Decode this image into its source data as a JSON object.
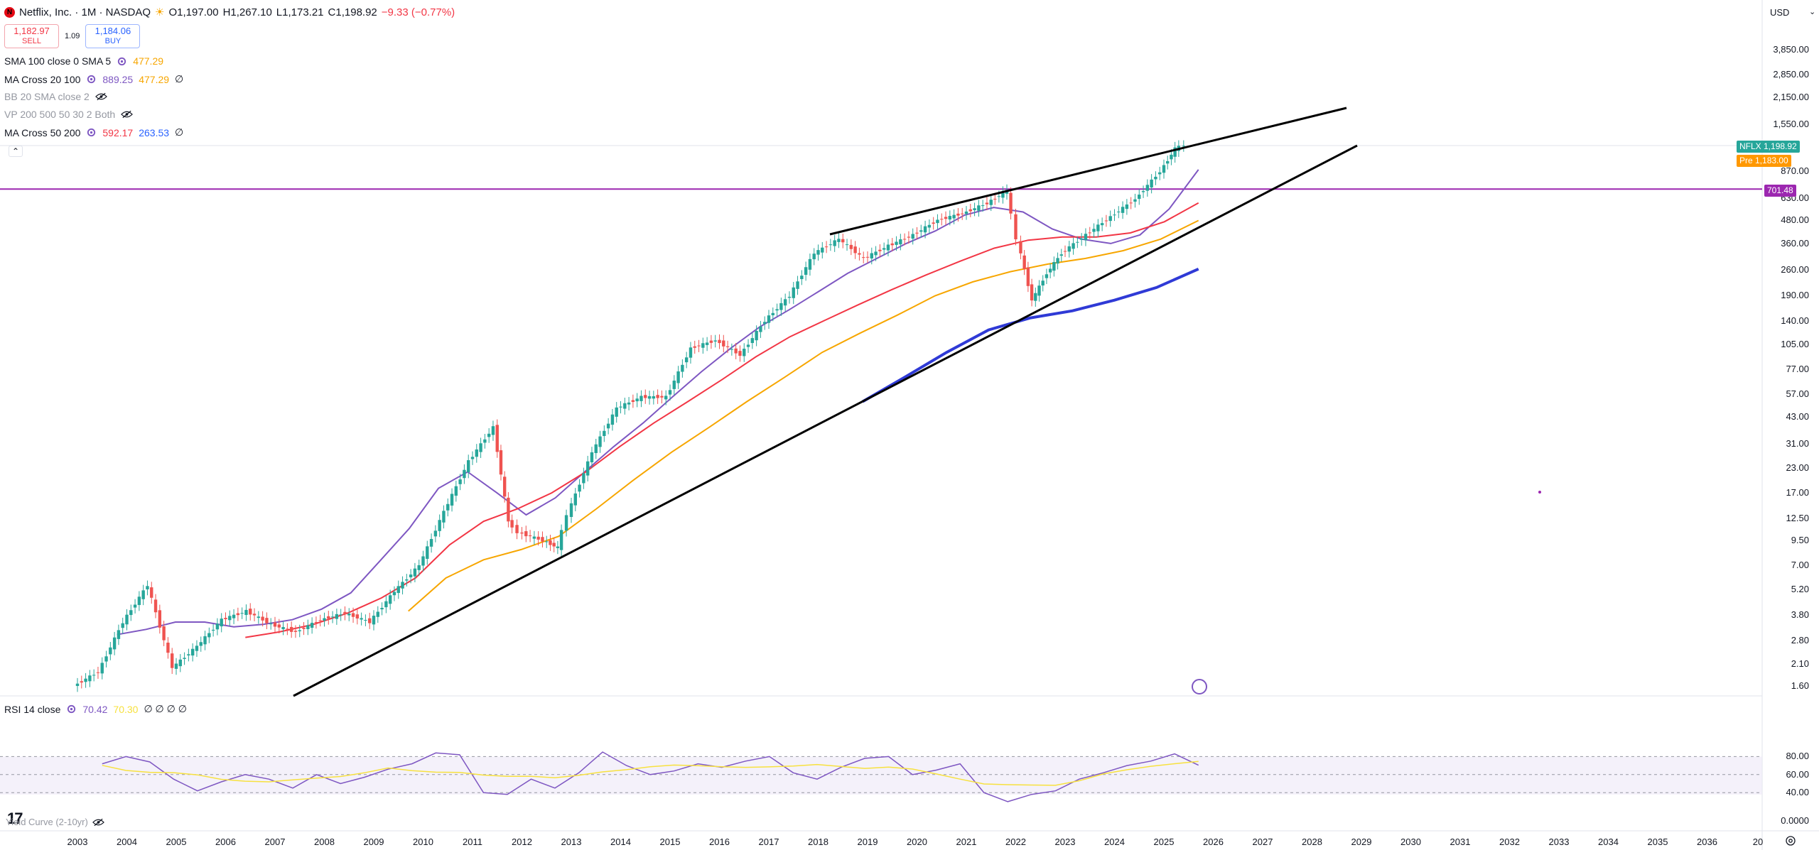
{
  "symbol": {
    "title": "Netflix, Inc. · 1M · NASDAQ",
    "o_label": "O",
    "o": "1,197.00",
    "h_label": "H",
    "h": "1,267.10",
    "l_label": "L",
    "l": "1,173.21",
    "c_label": "C",
    "c": "1,198.92",
    "change": "−9.33 (−0.77%)",
    "logo_letter": "N"
  },
  "trade": {
    "sell_price": "1,182.97",
    "sell_label": "SELL",
    "spread": "1.09",
    "buy_price": "1,184.06",
    "buy_label": "BUY"
  },
  "indicators": [
    {
      "name": "SMA 100 close 0 SMA 5",
      "v1": "477.29",
      "v1_color": "#f7a600"
    },
    {
      "name": "MA Cross 20 100",
      "v1": "889.25",
      "v1_color": "#7e57c2",
      "v2": "477.29",
      "v2_color": "#f7a600",
      "extra": "∅"
    },
    {
      "name": "BB 20 SMA close 2",
      "muted": true
    },
    {
      "name": "VP 200 500 50 30 2 Both",
      "muted": true
    },
    {
      "name": "MA Cross 50 200",
      "v1": "592.17",
      "v1_color": "#f23645",
      "v2": "263.53",
      "v2_color": "#2962ff",
      "extra": "∅"
    }
  ],
  "rsi": {
    "name": "RSI 14 close",
    "v1": "70.42",
    "v2": "70.30",
    "extras": "∅ ∅ ∅ ∅",
    "levels": [
      "80.00",
      "60.00",
      "40.00"
    ]
  },
  "yield_curve": {
    "name": "Yield Curve (2-10yr)"
  },
  "price_axis": {
    "currency": "USD",
    "labels": [
      "3,850.00",
      "2,850.00",
      "2,150.00",
      "1,550.00",
      "870.00",
      "630.00",
      "480.00",
      "360.00",
      "260.00",
      "190.00",
      "140.00",
      "105.00",
      "77.00",
      "57.00",
      "43.00",
      "31.00",
      "23.00",
      "17.00",
      "12.50",
      "9.50",
      "7.00",
      "5.20",
      "3.80",
      "2.80",
      "2.10",
      "1.60"
    ],
    "tags": [
      {
        "label": "NFLX",
        "value": "1,198.92",
        "color": "#26a69a"
      },
      {
        "label": "Pre",
        "value": "1,183.00",
        "color": "#ff9800"
      },
      {
        "label": "",
        "value": "701.48",
        "color": "#9c27b0"
      }
    ],
    "zero": "0.0000"
  },
  "time_axis": [
    "2003",
    "2004",
    "2005",
    "2006",
    "2007",
    "2008",
    "2009",
    "2010",
    "2011",
    "2012",
    "2013",
    "2014",
    "2015",
    "2016",
    "2017",
    "2018",
    "2019",
    "2020",
    "2021",
    "2022",
    "2023",
    "2024",
    "2025",
    "2026",
    "2027",
    "2028",
    "2029",
    "2030",
    "2031",
    "2032",
    "2033",
    "2034",
    "2035",
    "2036",
    "20"
  ],
  "colors": {
    "up": "#26a69a",
    "down": "#ef5350",
    "sma20": "#7e57c2",
    "ma50": "#f23645",
    "ma100": "#f7a600",
    "ma200": "#2f3ad6",
    "hline": "#9c27b0",
    "rsi": "#7e57c2",
    "rsi_ma": "#f7e13f"
  },
  "chart_data": {
    "type": "candlestick",
    "scale": "log",
    "interval": "1M",
    "horizontal_line": 701.48,
    "series": [
      {
        "name": "NFLX",
        "x": [
          2003.0,
          2003.5,
          2004.0,
          2004.5,
          2005.0,
          2005.5,
          2006.0,
          2006.5,
          2007.0,
          2007.5,
          2008.0,
          2008.5,
          2009.0,
          2009.5,
          2010.0,
          2010.5,
          2011.0,
          2011.5,
          2011.8,
          2012.0,
          2012.5,
          2012.8,
          2013.0,
          2013.5,
          2014.0,
          2014.5,
          2015.0,
          2015.5,
          2016.0,
          2016.5,
          2017.0,
          2017.5,
          2018.0,
          2018.5,
          2019.0,
          2019.5,
          2020.0,
          2020.5,
          2021.0,
          2021.5,
          2021.9,
          2022.1,
          2022.4,
          2022.7,
          2023.0,
          2023.5,
          2024.0,
          2024.5,
          2025.0,
          2025.3,
          2025.5
        ],
        "values": [
          1.6,
          1.9,
          3.5,
          5.5,
          2.0,
          2.6,
          3.6,
          4.0,
          3.4,
          3.1,
          3.6,
          3.9,
          3.5,
          5.1,
          7.0,
          13.5,
          25,
          38,
          12,
          10.5,
          9.5,
          8.7,
          13,
          28,
          48,
          55,
          55,
          100,
          110,
          92,
          140,
          190,
          320,
          380,
          300,
          350,
          400,
          480,
          520,
          590,
          690,
          380,
          180,
          250,
          320,
          400,
          500,
          620,
          870,
          1150,
          1198.92
        ]
      }
    ],
    "moving_averages": [
      {
        "name": "MA 20",
        "values": [
          3.0,
          3.2,
          3.5,
          3.5,
          3.3,
          3.4,
          3.6,
          4.1,
          5.0,
          7.4,
          11,
          18,
          22,
          17,
          13,
          16,
          22,
          30,
          40,
          55,
          75,
          100,
          130,
          160,
          200,
          250,
          300,
          360,
          420,
          510,
          560,
          530,
          430,
          380,
          360,
          400,
          550,
          889.25
        ]
      },
      {
        "name": "MA 50",
        "values": [
          2.9,
          3.1,
          3.4,
          3.9,
          4.7,
          6.0,
          9,
          12,
          14,
          17,
          22,
          30,
          40,
          52,
          68,
          90,
          115,
          140,
          170,
          205,
          245,
          290,
          340,
          375,
          390,
          390,
          410,
          470,
          592.17
        ]
      },
      {
        "name": "MA 100",
        "values": [
          4.0,
          6.0,
          7.5,
          8.5,
          10,
          14,
          20,
          28,
          38,
          52,
          70,
          95,
          120,
          150,
          190,
          225,
          255,
          280,
          300,
          330,
          380,
          477.29
        ]
      },
      {
        "name": "MA 200",
        "values": [
          52,
          70,
          95,
          125,
          145,
          158,
          180,
          210,
          263.53
        ]
      }
    ],
    "rsi": {
      "values": [
        72,
        80,
        74,
        55,
        42,
        52,
        60,
        55,
        45,
        60,
        50,
        57,
        66,
        72,
        84,
        82,
        40,
        38,
        55,
        45,
        62,
        85,
        70,
        60,
        64,
        72,
        68,
        75,
        80,
        62,
        55,
        68,
        78,
        80,
        60,
        65,
        72,
        40,
        30,
        38,
        42,
        55,
        62,
        70,
        75,
        83,
        70.42
      ],
      "ma": [
        70.3
      ]
    },
    "ylim_log": [
      1.6,
      3850
    ]
  }
}
